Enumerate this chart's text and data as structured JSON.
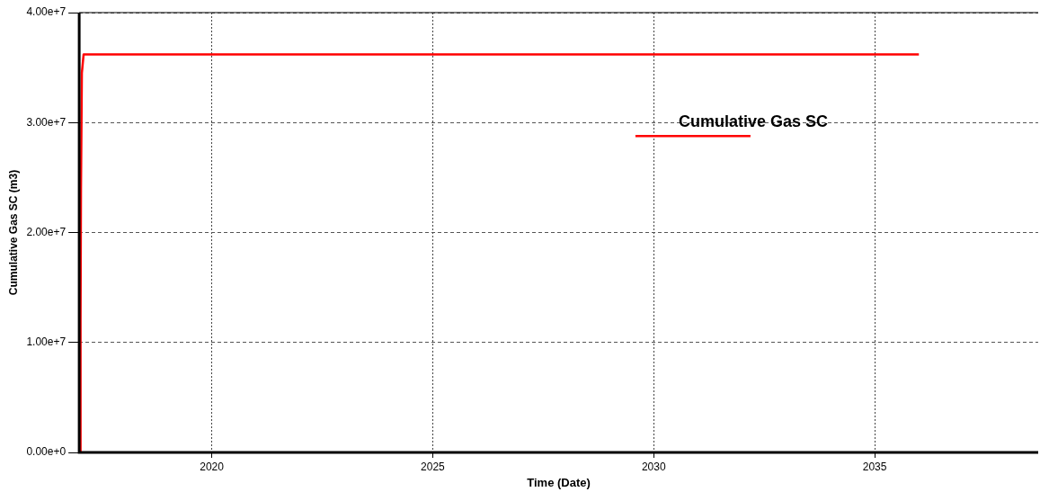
{
  "chart_data": {
    "type": "line",
    "xlabel": "Time (Date)",
    "ylabel": "Cumulative Gas SC (m3)",
    "series": [
      {
        "name": "Cumulative Gas SC",
        "color": "#ff0000",
        "x": [
          2017.02,
          2017.03,
          2017.04,
          2017.06,
          2017.1,
          2036.0
        ],
        "values": [
          0,
          12000000,
          24000000,
          34500000,
          36200000,
          36200000
        ]
      }
    ],
    "xlim": [
      2017,
      2038.7
    ],
    "xticks": [
      2020,
      2025,
      2030,
      2035
    ],
    "ylim": [
      0,
      40000000
    ],
    "yticks": [
      {
        "value": 0,
        "label": "0.00e+0"
      },
      {
        "value": 10000000,
        "label": "1.00e+7"
      },
      {
        "value": 20000000,
        "label": "2.00e+7"
      },
      {
        "value": 30000000,
        "label": "3.00e+7"
      },
      {
        "value": 40000000,
        "label": "4.00e+7"
      }
    ],
    "grid": true,
    "legend": "top right",
    "marker": "none",
    "line_style": "solid"
  }
}
